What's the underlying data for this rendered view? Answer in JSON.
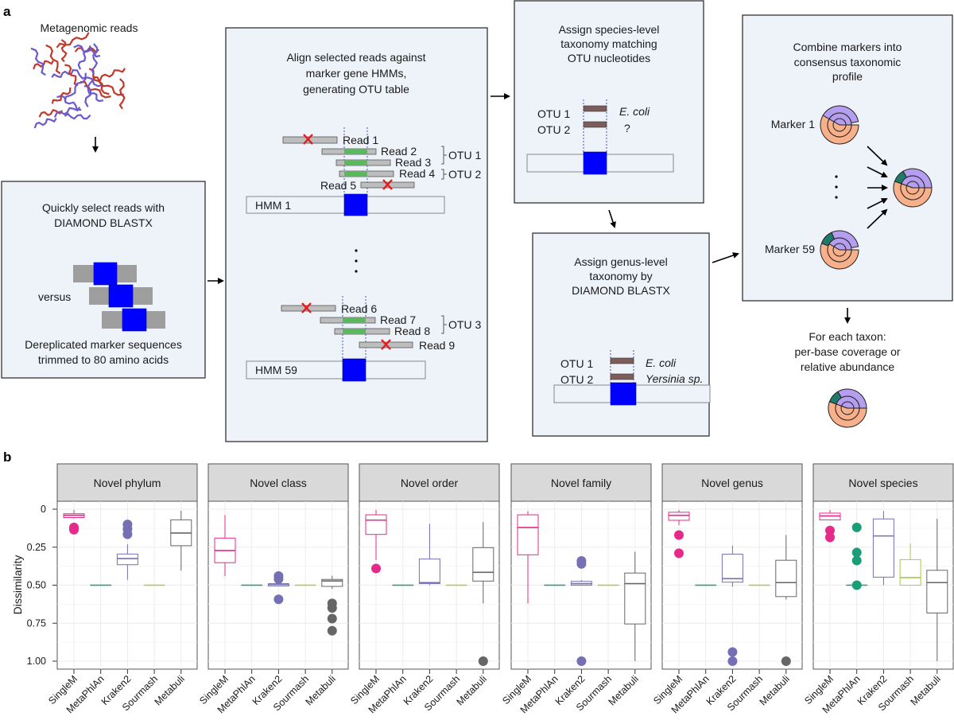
{
  "panel_a": {
    "label": "a",
    "reads_title": "Metagenomic reads",
    "step1": {
      "title_lines": [
        "Quickly select reads with",
        "DIAMOND BLASTX"
      ],
      "versus": "versus",
      "caption_lines": [
        "Dereplicated marker sequences",
        "trimmed to 80 amino acids"
      ]
    },
    "step2": {
      "title_lines": [
        "Align selected reads against",
        "marker gene HMMs,",
        "generating OTU table"
      ],
      "reads": [
        "Read 1",
        "Read 2",
        "Read 3",
        "Read 4",
        "Read 5",
        "Read 6",
        "Read 7",
        "Read 8",
        "Read 9"
      ],
      "otus": [
        "OTU 1",
        "OTU 2",
        "OTU 3"
      ],
      "hmms": [
        "HMM 1",
        "HMM 59"
      ]
    },
    "step3": {
      "title_lines": [
        "Assign species-level",
        "taxonomy matching",
        "OTU nucleotides"
      ],
      "otus": [
        "OTU 1",
        "OTU 2"
      ],
      "assignments": [
        "E. coli",
        "?"
      ]
    },
    "step4": {
      "title_lines": [
        "Assign genus-level",
        "taxonomy by",
        "DIAMOND BLASTX"
      ],
      "otus": [
        "OTU 1",
        "OTU 2"
      ],
      "assignments": [
        "E. coli",
        "Yersinia sp."
      ]
    },
    "step5": {
      "title_lines": [
        "Combine markers into",
        "consensus taxonomic",
        "profile"
      ],
      "markers": [
        "Marker 1",
        "Marker 59"
      ]
    },
    "output_lines": [
      "For each taxon:",
      "per-base coverage or",
      "relative abundance"
    ],
    "colors": {
      "box": "#eef2f9",
      "hmm_match": "#0000ff",
      "aligned": "#5cb85c",
      "rejected": "#e41a1c",
      "donut_main": "#f7b08a",
      "donut_purple": "#b59ef0",
      "donut_teal": "#1f7a6c"
    }
  },
  "panel_b": {
    "label": "b"
  },
  "chart_data": {
    "type": "boxplot",
    "ylabel": "Dissimilarity",
    "xlabel": "",
    "ylim": [
      0,
      1
    ],
    "y_reversed": true,
    "y_ticks": [
      "0",
      "0.25",
      "0.50",
      "0.75",
      "1.00"
    ],
    "y_tick_values": [
      0,
      0.25,
      0.5,
      0.75,
      1.0
    ],
    "grid": true,
    "categories": [
      "SingleM",
      "MetaPhlAn",
      "Kraken2",
      "Sourmash",
      "Metabuli"
    ],
    "colors": {
      "SingleM": "#e7298a",
      "MetaPhlAn": "#1b9e77",
      "Kraken2": "#7570b3",
      "Sourmash": "#a6c94a",
      "Metabuli": "#666666"
    },
    "facets": [
      {
        "title": "Novel phylum",
        "boxes": [
          {
            "min": 0.005,
            "q1": 0.03,
            "median": 0.04,
            "q3": 0.055,
            "max": 0.06,
            "outliers": [
              0.12,
              0.135
            ]
          },
          {
            "min": 0.5,
            "q1": 0.5,
            "median": 0.5,
            "q3": 0.5,
            "max": 0.5,
            "outliers": []
          },
          {
            "min": 0.23,
            "q1": 0.295,
            "median": 0.325,
            "q3": 0.365,
            "max": 0.465,
            "outliers": [
              0.1,
              0.13,
              0.165
            ]
          },
          {
            "min": 0.5,
            "q1": 0.5,
            "median": 0.5,
            "q3": 0.5,
            "max": 0.5,
            "outliers": []
          },
          {
            "min": 0.01,
            "q1": 0.07,
            "median": 0.157,
            "q3": 0.24,
            "max": 0.405,
            "outliers": []
          }
        ]
      },
      {
        "title": "Novel class",
        "boxes": [
          {
            "min": 0.038,
            "q1": 0.19,
            "median": 0.272,
            "q3": 0.352,
            "max": 0.44,
            "outliers": []
          },
          {
            "min": 0.5,
            "q1": 0.5,
            "median": 0.5,
            "q3": 0.5,
            "max": 0.5,
            "outliers": []
          },
          {
            "min": 0.49,
            "q1": 0.49,
            "median": 0.495,
            "q3": 0.505,
            "max": 0.505,
            "outliers": [
              0.44,
              0.46,
              0.593
            ]
          },
          {
            "min": 0.5,
            "q1": 0.5,
            "median": 0.5,
            "q3": 0.5,
            "max": 0.5,
            "outliers": []
          },
          {
            "min": 0.438,
            "q1": 0.462,
            "median": 0.472,
            "q3": 0.508,
            "max": 0.525,
            "outliers": [
              0.62,
              0.65,
              0.72,
              0.8
            ]
          }
        ]
      },
      {
        "title": "Novel order",
        "boxes": [
          {
            "min": 0.005,
            "q1": 0.037,
            "median": 0.072,
            "q3": 0.166,
            "max": 0.335,
            "outliers": [
              0.39
            ]
          },
          {
            "min": 0.5,
            "q1": 0.5,
            "median": 0.5,
            "q3": 0.5,
            "max": 0.5,
            "outliers": []
          },
          {
            "min": 0.096,
            "q1": 0.328,
            "median": 0.483,
            "q3": 0.49,
            "max": 0.5,
            "outliers": []
          },
          {
            "min": 0.5,
            "q1": 0.5,
            "median": 0.5,
            "q3": 0.5,
            "max": 0.5,
            "outliers": []
          },
          {
            "min": 0.085,
            "q1": 0.253,
            "median": 0.415,
            "q3": 0.473,
            "max": 0.62,
            "outliers": [
              1.0
            ]
          }
        ]
      },
      {
        "title": "Novel family",
        "boxes": [
          {
            "min": 0.013,
            "q1": 0.037,
            "median": 0.121,
            "q3": 0.3,
            "max": 0.62,
            "outliers": []
          },
          {
            "min": 0.5,
            "q1": 0.5,
            "median": 0.5,
            "q3": 0.5,
            "max": 0.5,
            "outliers": []
          },
          {
            "min": 0.466,
            "q1": 0.475,
            "median": 0.49,
            "q3": 0.5,
            "max": 0.5,
            "outliers": [
              0.34,
              0.36,
              1.0
            ]
          },
          {
            "min": 0.5,
            "q1": 0.5,
            "median": 0.5,
            "q3": 0.5,
            "max": 0.5,
            "outliers": []
          },
          {
            "min": 0.28,
            "q1": 0.42,
            "median": 0.49,
            "q3": 0.755,
            "max": 1.0,
            "outliers": []
          }
        ]
      },
      {
        "title": "Novel genus",
        "boxes": [
          {
            "min": 0.005,
            "q1": 0.02,
            "median": 0.04,
            "q3": 0.073,
            "max": 0.105,
            "outliers": [
              0.17,
              0.29
            ]
          },
          {
            "min": 0.5,
            "q1": 0.5,
            "median": 0.5,
            "q3": 0.5,
            "max": 0.5,
            "outliers": []
          },
          {
            "min": 0.24,
            "q1": 0.296,
            "median": 0.457,
            "q3": 0.48,
            "max": 0.51,
            "outliers": [
              0.94,
              1.0
            ]
          },
          {
            "min": 0.5,
            "q1": 0.5,
            "median": 0.5,
            "q3": 0.5,
            "max": 0.5,
            "outliers": []
          },
          {
            "min": 0.17,
            "q1": 0.336,
            "median": 0.483,
            "q3": 0.575,
            "max": 0.595,
            "outliers": [
              1.0
            ]
          }
        ]
      },
      {
        "title": "Novel species",
        "boxes": [
          {
            "min": 0.005,
            "q1": 0.026,
            "median": 0.044,
            "q3": 0.07,
            "max": 0.07,
            "outliers": [
              0.14,
              0.185
            ]
          },
          {
            "min": 0.5,
            "q1": 0.5,
            "median": 0.5,
            "q3": 0.5,
            "max": 0.5,
            "outliers": [
              0.12,
              0.285,
              0.338,
              0.5
            ]
          },
          {
            "min": 0.012,
            "q1": 0.064,
            "median": 0.176,
            "q3": 0.447,
            "max": 0.5,
            "outliers": []
          },
          {
            "min": 0.225,
            "q1": 0.332,
            "median": 0.45,
            "q3": 0.5,
            "max": 0.5,
            "outliers": []
          },
          {
            "min": 0.062,
            "q1": 0.402,
            "median": 0.483,
            "q3": 0.683,
            "max": 1.0,
            "outliers": []
          }
        ]
      }
    ]
  }
}
